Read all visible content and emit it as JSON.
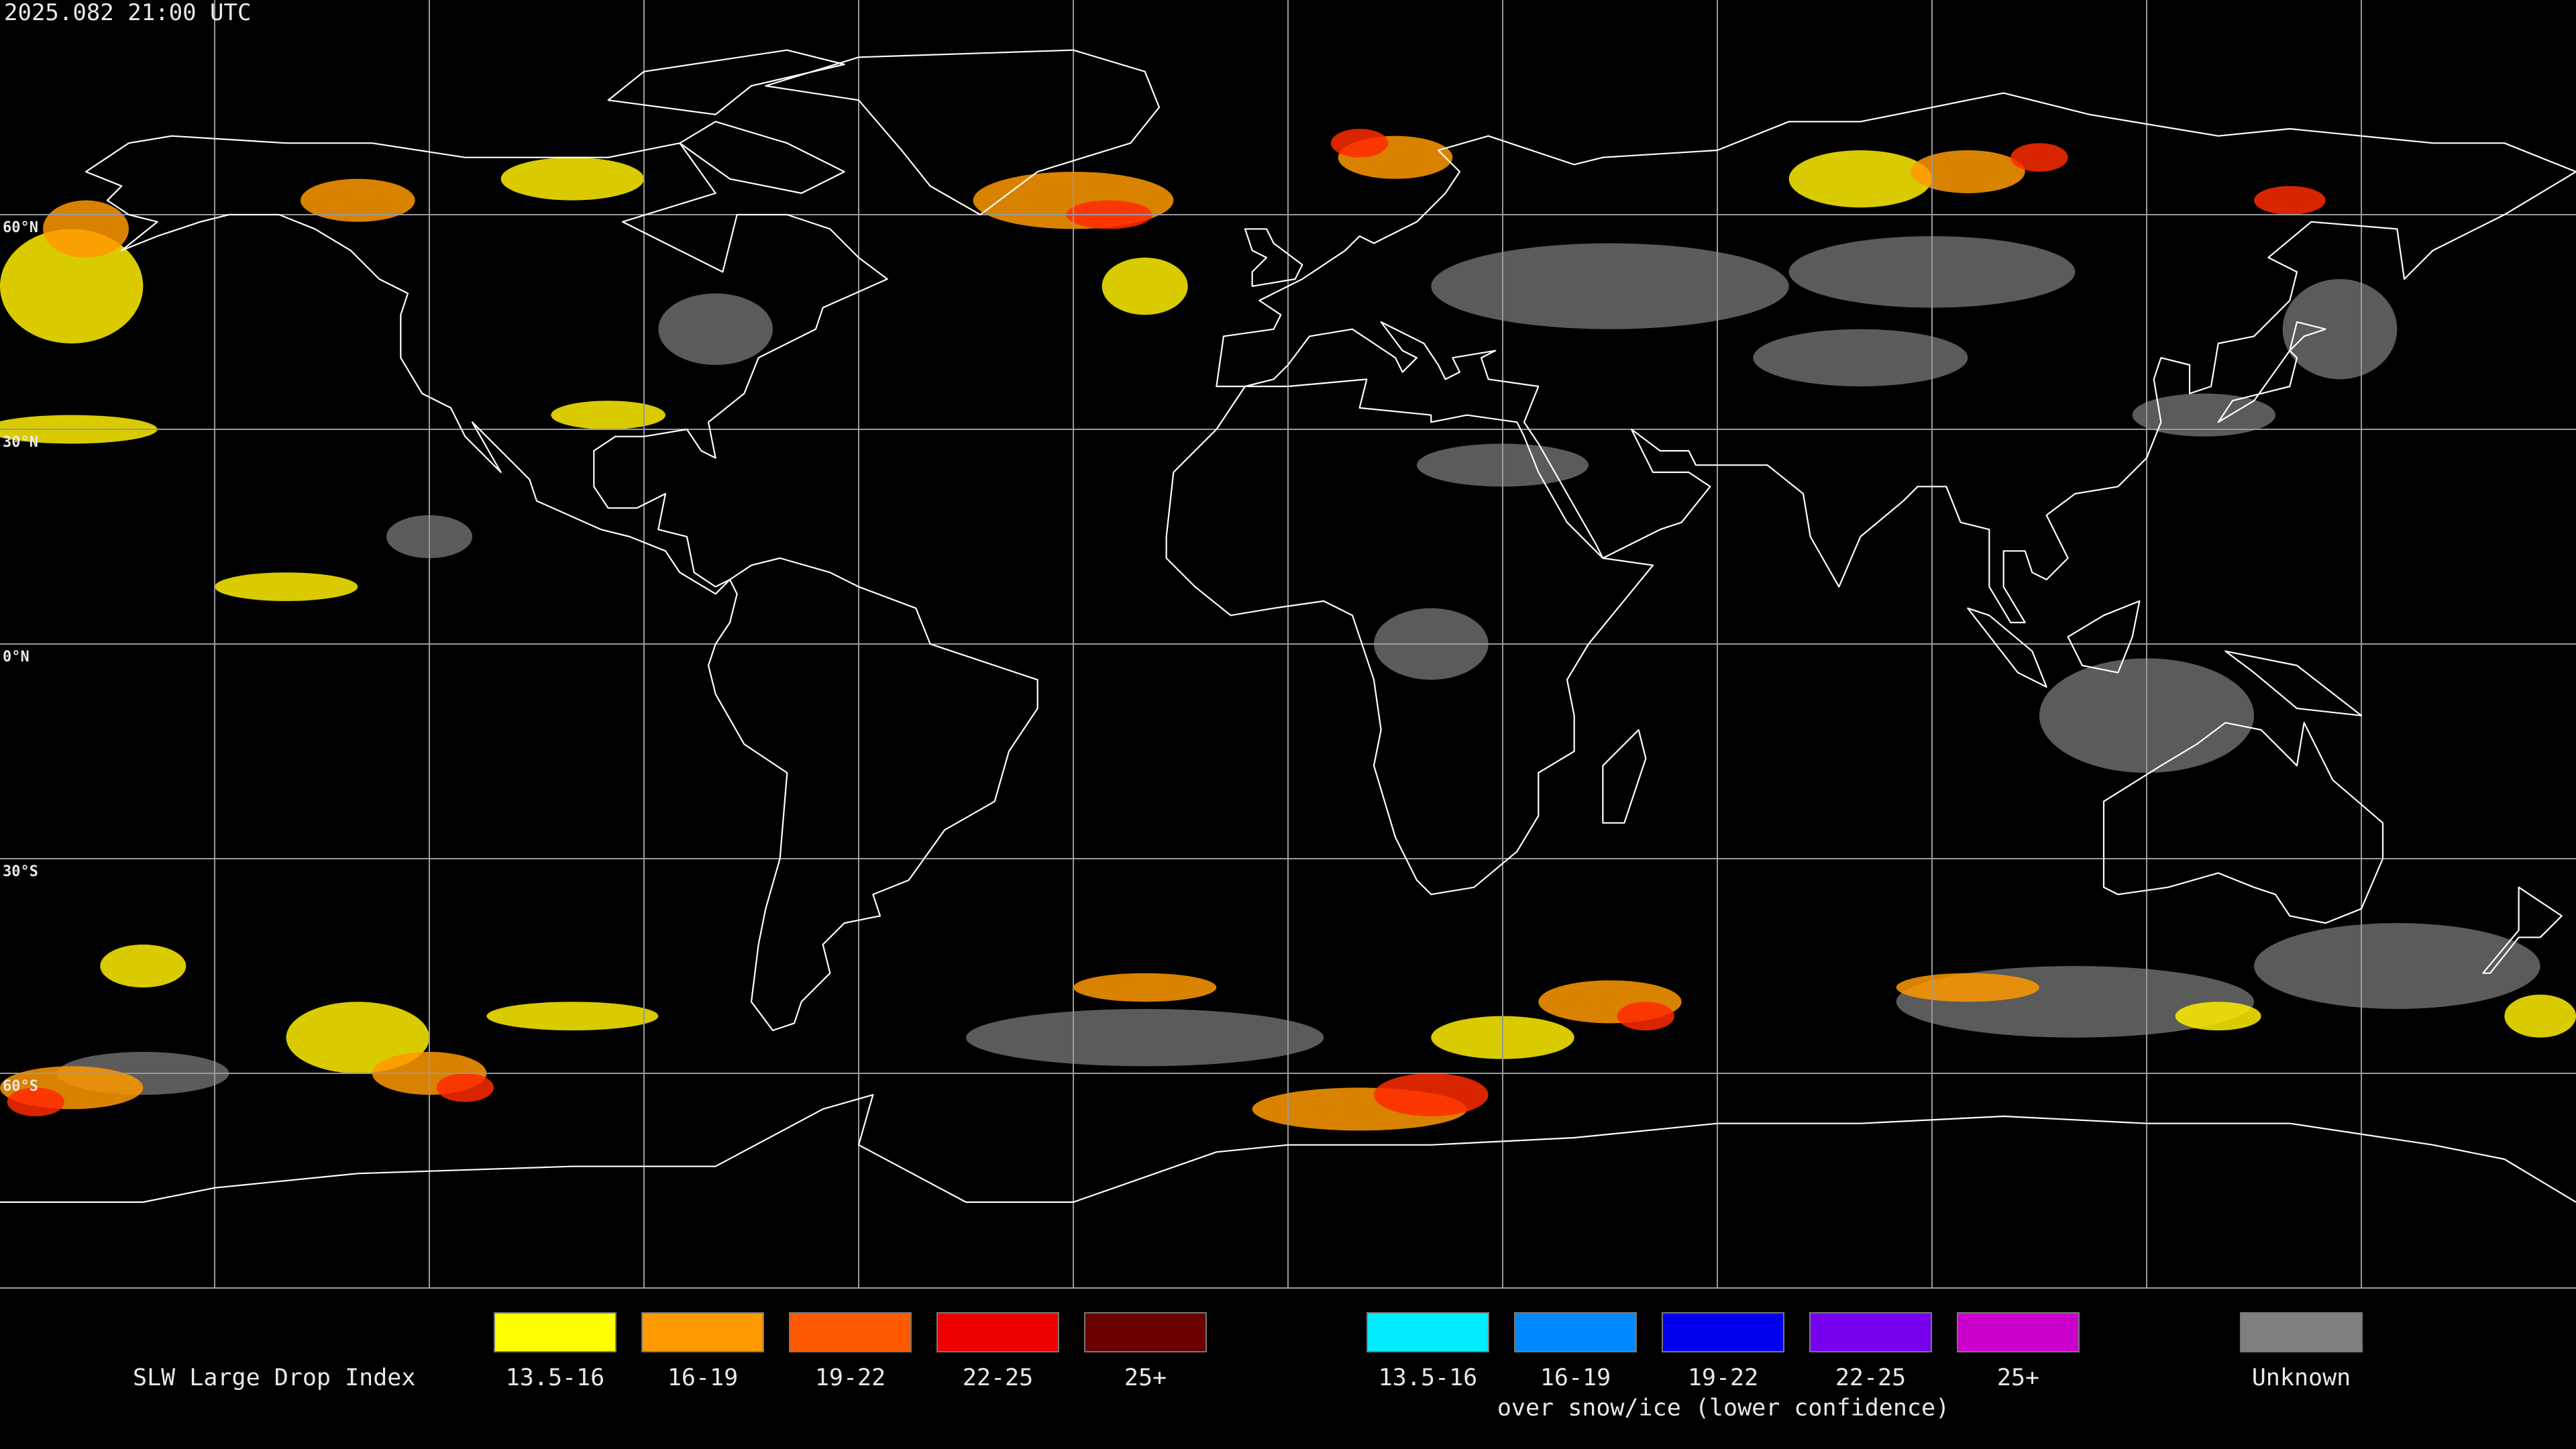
{
  "header": {
    "timestamp": "2025.082 21:00 UTC"
  },
  "map": {
    "latitude_labels": [
      "60°N",
      "30°N",
      "0°N",
      "30°S",
      "60°S"
    ]
  },
  "legend": {
    "title": "SLW Large Drop Index",
    "liquid": [
      {
        "label": "13.5-16",
        "color": "#ffff00"
      },
      {
        "label": "16-19",
        "color": "#ff9a00"
      },
      {
        "label": "19-22",
        "color": "#ff5a00"
      },
      {
        "label": "22-25",
        "color": "#ee0000"
      },
      {
        "label": "25+",
        "color": "#6a0000"
      }
    ],
    "snow_ice": {
      "items": [
        {
          "label": "13.5-16",
          "color": "#00eeff"
        },
        {
          "label": "16-19",
          "color": "#0088ff"
        },
        {
          "label": "19-22",
          "color": "#0000ee"
        },
        {
          "label": "22-25",
          "color": "#7700ee"
        },
        {
          "label": "25+",
          "color": "#cc00cc"
        }
      ],
      "caption": "over snow/ice (lower confidence)"
    },
    "unknown": {
      "label": "Unknown",
      "color": "#808080"
    }
  }
}
